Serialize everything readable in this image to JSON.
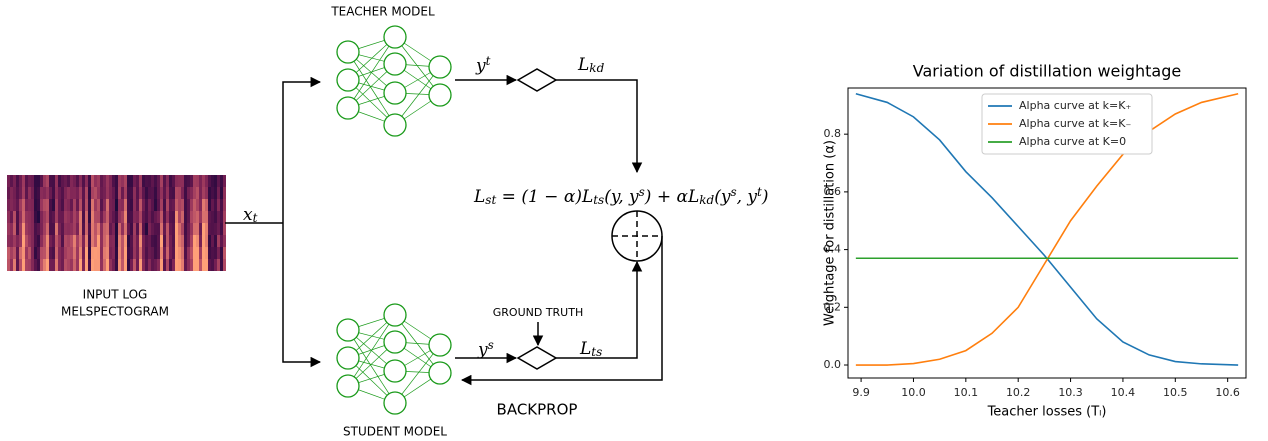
{
  "diagram": {
    "teacher_title": "TEACHER MODEL",
    "student_title": "STUDENT MODEL",
    "input_label": [
      "INPUT LOG",
      "MELSPECTOGRAM"
    ],
    "ground_truth": "GROUND TRUTH",
    "backprop": "BACKPROP",
    "x_in": [
      {
        "t": "x"
      },
      {
        "sub": "t"
      }
    ],
    "y_teacher": [
      {
        "t": "y"
      },
      {
        "sup": "t"
      }
    ],
    "l_kd": [
      {
        "t": "L"
      },
      {
        "sub": "kd"
      }
    ],
    "y_student": [
      {
        "t": "y"
      },
      {
        "sup": "s"
      }
    ],
    "l_ts": [
      {
        "t": "L"
      },
      {
        "sub": "ts"
      }
    ],
    "formula": [
      {
        "t": "L"
      },
      {
        "sub": "st"
      },
      {
        "t": " = (1 − α)L"
      },
      {
        "sub": "ts"
      },
      {
        "t": "(y, y"
      },
      {
        "sup": "s"
      },
      {
        "t": ") + αL"
      },
      {
        "sub": "kd"
      },
      {
        "t": "(y"
      },
      {
        "sup": "s"
      },
      {
        "t": ", y"
      },
      {
        "sup": "t"
      },
      {
        "t": ")"
      }
    ]
  },
  "chart_data": {
    "type": "line",
    "title": "Variation of distillation weightage",
    "x_label": "Teacher losses (Tₗ)",
    "y_label": "Weightage for distillation (α)",
    "x": [
      9.89,
      9.95,
      10.0,
      10.05,
      10.1,
      10.15,
      10.2,
      10.25,
      10.3,
      10.35,
      10.4,
      10.45,
      10.5,
      10.55,
      10.62
    ],
    "series": [
      {
        "name": "Alpha curve at k=K₊",
        "color": "#1f77b4",
        "values": [
          0.94,
          0.91,
          0.86,
          0.78,
          0.67,
          0.58,
          0.48,
          0.38,
          0.27,
          0.16,
          0.08,
          0.035,
          0.012,
          0.004,
          0.0
        ]
      },
      {
        "name": "Alpha curve at k=K₋",
        "color": "#ff7f0e",
        "values": [
          0.0,
          0.0,
          0.005,
          0.02,
          0.05,
          0.11,
          0.2,
          0.35,
          0.5,
          0.62,
          0.73,
          0.81,
          0.87,
          0.91,
          0.94
        ]
      },
      {
        "name": "Alpha curve at K=0",
        "color": "#2ca02c",
        "values": [
          0.37,
          0.37,
          0.37,
          0.37,
          0.37,
          0.37,
          0.37,
          0.37,
          0.37,
          0.37,
          0.37,
          0.37,
          0.37,
          0.37,
          0.37
        ]
      }
    ],
    "xlim": [
      9.875,
      10.635
    ],
    "ylim": [
      -0.045,
      0.96
    ],
    "xticks": [
      9.9,
      {
        "value": 10,
        "label": "10.0"
      },
      10.1,
      10.2,
      10.3,
      10.4,
      10.5,
      10.6
    ],
    "yticks": [
      {
        "value": 0,
        "label": "0.0"
      },
      0.2,
      0.4,
      0.6,
      0.8
    ],
    "legend": "upper center",
    "grid": false
  }
}
